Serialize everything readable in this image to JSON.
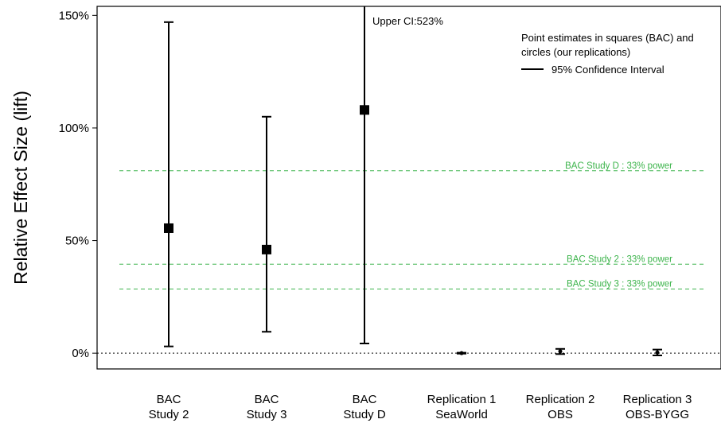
{
  "chart_data": {
    "type": "scatter",
    "ylabel": "Relative Effect Size (lift)",
    "ylim": [
      -0.07,
      1.54
    ],
    "y_ticks": [
      0,
      0.5,
      1.0,
      1.5
    ],
    "y_tick_labels": [
      "0%",
      "50%",
      "100%",
      "150%"
    ],
    "categories": [
      {
        "line1": "BAC",
        "line2": "Study 2"
      },
      {
        "line1": "BAC",
        "line2": "Study 3"
      },
      {
        "line1": "BAC",
        "line2": "Study D"
      },
      {
        "line1": "Replication 1",
        "line2": "SeaWorld"
      },
      {
        "line1": "Replication 2",
        "line2": "OBS"
      },
      {
        "line1": "Replication 3",
        "line2": "OBS-BYGG"
      }
    ],
    "points": [
      {
        "estimate": 0.555,
        "ci_low": 0.03,
        "ci_high": 1.47,
        "marker": "square",
        "ci_capped": false
      },
      {
        "estimate": 0.46,
        "ci_low": 0.095,
        "ci_high": 1.05,
        "marker": "square",
        "ci_capped": false
      },
      {
        "estimate": 1.08,
        "ci_low": 0.043,
        "ci_high": 5.23,
        "marker": "square",
        "ci_capped": true
      },
      {
        "estimate": 0.0,
        "ci_low": -0.002,
        "ci_high": 0.002,
        "marker": "circle",
        "ci_capped": false
      },
      {
        "estimate": 0.008,
        "ci_low": -0.004,
        "ci_high": 0.019,
        "marker": "circle",
        "ci_capped": false
      },
      {
        "estimate": 0.003,
        "ci_low": -0.01,
        "ci_high": 0.016,
        "marker": "circle",
        "ci_capped": false
      }
    ],
    "reference_lines": [
      {
        "y": 0.81,
        "label": "BAC Study D : 33% power"
      },
      {
        "y": 0.395,
        "label": "BAC Study 2 : 33% power"
      },
      {
        "y": 0.285,
        "label": "BAC Study 3 : 33% power"
      }
    ],
    "zero_line": 0,
    "annotation": "Upper CI:523%",
    "legend": {
      "text_line1": "Point estimates in squares (BAC) and",
      "text_line2": "circles (our replications)",
      "ci_label": "95% Confidence Interval",
      "placement": "top-right"
    },
    "colors": {
      "reference": "#3cb44b",
      "marks": "#000000"
    }
  }
}
